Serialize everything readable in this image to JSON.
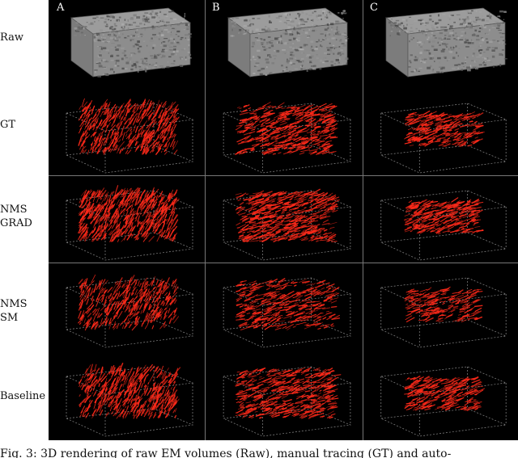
{
  "columns": [
    {
      "id": "a",
      "label": "A"
    },
    {
      "id": "b",
      "label": "B"
    },
    {
      "id": "c",
      "label": "C"
    }
  ],
  "rows": [
    {
      "id": "raw",
      "label": "Raw",
      "kind": "em"
    },
    {
      "id": "gt",
      "label": "GT",
      "kind": "tracing",
      "density": 520
    },
    {
      "id": "nms-grad",
      "label": "NMS\nGRAD",
      "kind": "tracing",
      "density": 620
    },
    {
      "id": "nms-sm",
      "label": "NMS\nSM",
      "kind": "tracing",
      "density": 420
    },
    {
      "id": "baseline",
      "label": "Baseline",
      "kind": "tracing",
      "density": 520
    }
  ],
  "colors": {
    "figure_background": "#000000",
    "tracing": "#ff2a1a",
    "em_surface": "#9a9a9a",
    "bounding_box": "#8a8a8a"
  },
  "caption": "Fig. 3: 3D rendering of raw EM volumes (Raw), manual tracing (GT) and auto-"
}
